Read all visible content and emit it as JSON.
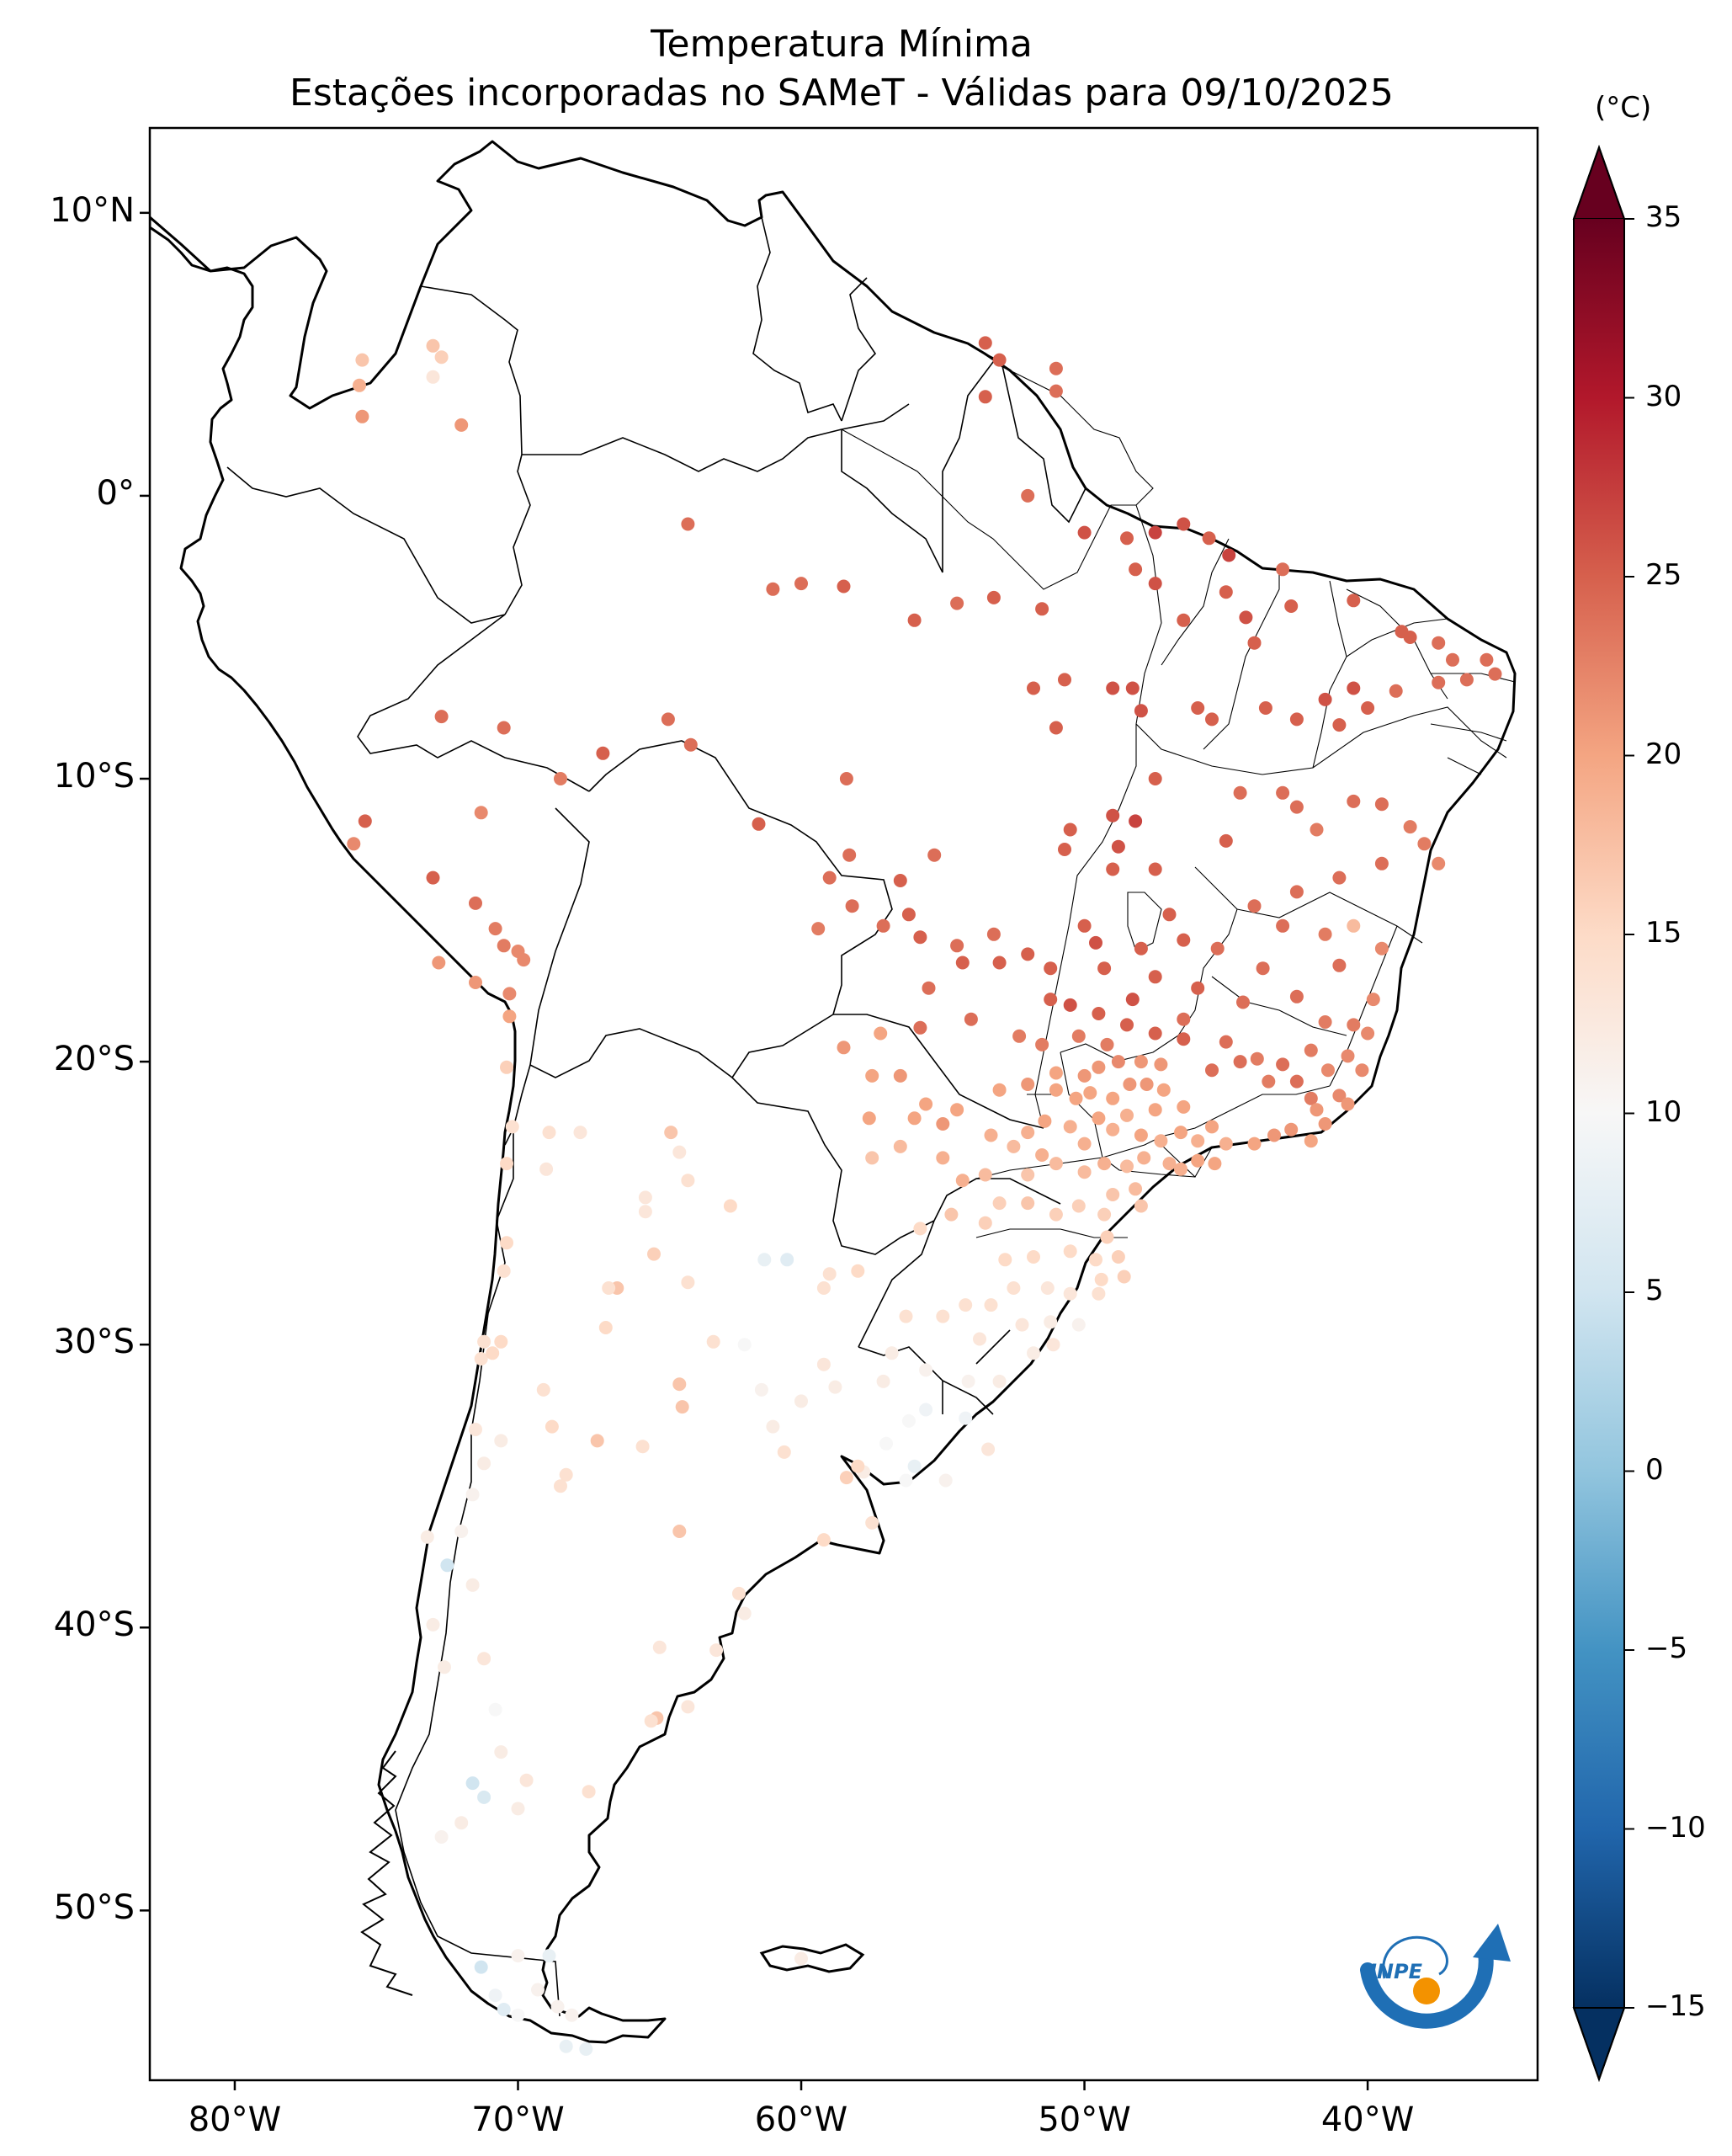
{
  "title": {
    "line1": "Temperatura Mínima",
    "line2": "Estações incorporadas no SAMeT - Válidas para 09/10/2025"
  },
  "map": {
    "region": "South America",
    "lon_range": [
      -83,
      -34
    ],
    "lat_range": [
      -56,
      13
    ],
    "lat_ticks": [
      {
        "lat": 10,
        "label": "10°N"
      },
      {
        "lat": 0,
        "label": "0°"
      },
      {
        "lat": -10,
        "label": "10°S"
      },
      {
        "lat": -20,
        "label": "20°S"
      },
      {
        "lat": -30,
        "label": "30°S"
      },
      {
        "lat": -40,
        "label": "40°S"
      },
      {
        "lat": -50,
        "label": "50°S"
      }
    ],
    "lon_ticks": [
      {
        "lon": -80,
        "label": "80°W"
      },
      {
        "lon": -70,
        "label": "70°W"
      },
      {
        "lon": -60,
        "label": "60°W"
      },
      {
        "lon": -50,
        "label": "50°W"
      },
      {
        "lon": -40,
        "label": "40°W"
      }
    ],
    "colors": {
      "coast": "#000000",
      "borders": "#000000",
      "ocean": "#ffffff",
      "land": "#ffffff"
    }
  },
  "colorbar": {
    "unit": "(°C)",
    "min": -15,
    "max": 35,
    "extend": "both",
    "ticks": [
      {
        "value": 35,
        "label": "35"
      },
      {
        "value": 30,
        "label": "30"
      },
      {
        "value": 25,
        "label": "25"
      },
      {
        "value": 20,
        "label": "20"
      },
      {
        "value": 15,
        "label": "15"
      },
      {
        "value": 10,
        "label": "10"
      },
      {
        "value": 5,
        "label": "5"
      },
      {
        "value": 0,
        "label": "0"
      },
      {
        "value": -5,
        "label": "−5"
      },
      {
        "value": -10,
        "label": "−10"
      },
      {
        "value": -15,
        "label": "−15"
      }
    ],
    "colormap": "RdBu_r",
    "stops": [
      "#053061",
      "#2166ac",
      "#4393c3",
      "#92c5de",
      "#d1e5f0",
      "#f7f7f7",
      "#fddbc7",
      "#f4a582",
      "#d6604d",
      "#b2182b",
      "#67001f"
    ]
  },
  "logo": {
    "name": "INPE logo",
    "text": "INPE"
  },
  "stations": [
    [
      -75.5,
      4.8,
      17
    ],
    [
      -75.6,
      3.9,
      19
    ],
    [
      -75.5,
      2.8,
      21
    ],
    [
      -73.0,
      5.3,
      17
    ],
    [
      -72.7,
      4.9,
      16
    ],
    [
      -73.0,
      4.2,
      13
    ],
    [
      -72.0,
      2.5,
      21
    ],
    [
      -64.0,
      -1.0,
      24
    ],
    [
      -61.0,
      -3.3,
      24
    ],
    [
      -60.0,
      -3.1,
      24
    ],
    [
      -58.5,
      -3.2,
      25
    ],
    [
      -56.0,
      -4.4,
      25
    ],
    [
      -54.5,
      -3.8,
      24
    ],
    [
      -53.2,
      -3.6,
      25
    ],
    [
      -51.5,
      -4.0,
      25
    ],
    [
      -53.5,
      5.4,
      25
    ],
    [
      -53.0,
      4.8,
      25
    ],
    [
      -53.5,
      3.5,
      25
    ],
    [
      -51.0,
      4.5,
      24
    ],
    [
      -51.0,
      3.7,
      24
    ],
    [
      -52.0,
      0.0,
      24
    ],
    [
      -50.0,
      -1.3,
      26
    ],
    [
      -47.5,
      -1.3,
      27
    ],
    [
      -48.5,
      -1.5,
      25
    ],
    [
      -46.5,
      -1.0,
      26
    ],
    [
      -45.6,
      -1.5,
      25
    ],
    [
      -44.9,
      -2.1,
      27
    ],
    [
      -43.0,
      -2.6,
      24
    ],
    [
      -48.2,
      -2.6,
      25
    ],
    [
      -47.5,
      -3.1,
      26
    ],
    [
      -45.0,
      -3.4,
      25
    ],
    [
      -44.3,
      -4.3,
      26
    ],
    [
      -46.5,
      -4.4,
      25
    ],
    [
      -44.0,
      -5.2,
      25
    ],
    [
      -42.7,
      -3.9,
      25
    ],
    [
      -40.5,
      -3.7,
      25
    ],
    [
      -38.8,
      -4.8,
      25
    ],
    [
      -38.5,
      -5.0,
      25
    ],
    [
      -37.5,
      -5.2,
      24
    ],
    [
      -37.0,
      -5.8,
      24
    ],
    [
      -35.8,
      -5.8,
      24
    ],
    [
      -35.5,
      -6.3,
      24
    ],
    [
      -36.5,
      -6.5,
      24
    ],
    [
      -37.5,
      -6.6,
      24
    ],
    [
      -39.0,
      -6.9,
      24
    ],
    [
      -40.5,
      -6.8,
      26
    ],
    [
      -41.5,
      -7.2,
      26
    ],
    [
      -40.0,
      -7.5,
      25
    ],
    [
      -41.0,
      -8.1,
      25
    ],
    [
      -42.5,
      -7.9,
      25
    ],
    [
      -43.6,
      -7.5,
      25
    ],
    [
      -45.5,
      -7.9,
      25
    ],
    [
      -46.0,
      -7.5,
      25
    ],
    [
      -48.3,
      -6.8,
      26
    ],
    [
      -48.0,
      -7.6,
      26
    ],
    [
      -49.0,
      -6.8,
      26
    ],
    [
      -50.7,
      -6.5,
      25
    ],
    [
      -51.8,
      -6.8,
      25
    ],
    [
      -51.0,
      -8.2,
      25
    ],
    [
      -47.5,
      -10.0,
      25
    ],
    [
      -49.0,
      -11.3,
      26
    ],
    [
      -50.5,
      -11.8,
      25
    ],
    [
      -48.2,
      -11.5,
      27
    ],
    [
      -50.7,
      -12.5,
      25
    ],
    [
      -49.0,
      -13.2,
      25
    ],
    [
      -48.8,
      -12.4,
      26
    ],
    [
      -47.5,
      -13.2,
      25
    ],
    [
      -45.0,
      -12.2,
      25
    ],
    [
      -43.0,
      -10.5,
      24
    ],
    [
      -44.5,
      -10.5,
      24
    ],
    [
      -42.5,
      -11.0,
      24
    ],
    [
      -41.8,
      -11.8,
      23
    ],
    [
      -40.5,
      -10.8,
      24
    ],
    [
      -39.5,
      -10.9,
      24
    ],
    [
      -38.5,
      -11.7,
      23
    ],
    [
      -38.0,
      -12.3,
      23
    ],
    [
      -37.5,
      -13.0,
      22
    ],
    [
      -39.5,
      -13.0,
      24
    ],
    [
      -41.0,
      -13.5,
      24
    ],
    [
      -42.5,
      -14.0,
      24
    ],
    [
      -44.0,
      -14.5,
      24
    ],
    [
      -43.0,
      -15.2,
      24
    ],
    [
      -41.5,
      -15.5,
      23
    ],
    [
      -40.5,
      -15.2,
      18
    ],
    [
      -39.5,
      -16.0,
      22
    ],
    [
      -41.0,
      -16.6,
      24
    ],
    [
      -39.8,
      -17.8,
      22
    ],
    [
      -40.5,
      -18.7,
      23
    ],
    [
      -41.5,
      -18.6,
      23
    ],
    [
      -42.5,
      -17.7,
      24
    ],
    [
      -43.7,
      -16.7,
      24
    ],
    [
      -44.4,
      -17.9,
      24
    ],
    [
      -45.3,
      -16.0,
      24
    ],
    [
      -46.0,
      -17.4,
      25
    ],
    [
      -46.5,
      -18.5,
      24
    ],
    [
      -45.0,
      -19.3,
      24
    ],
    [
      -43.9,
      -19.9,
      23
    ],
    [
      -43.0,
      -20.1,
      24
    ],
    [
      -42.0,
      -19.6,
      23
    ],
    [
      -41.4,
      -20.3,
      22
    ],
    [
      -40.2,
      -20.3,
      22
    ],
    [
      -40.7,
      -19.8,
      22
    ],
    [
      -40.0,
      -19.0,
      22
    ],
    [
      -41.0,
      -21.2,
      22
    ],
    [
      -42.0,
      -21.3,
      23
    ],
    [
      -42.5,
      -20.7,
      24
    ],
    [
      -43.5,
      -20.7,
      23
    ],
    [
      -44.5,
      -20.0,
      24
    ],
    [
      -45.5,
      -20.3,
      24
    ],
    [
      -46.5,
      -19.2,
      25
    ],
    [
      -47.5,
      -19.0,
      25
    ],
    [
      -48.5,
      -18.7,
      25
    ],
    [
      -49.5,
      -18.3,
      25
    ],
    [
      -50.5,
      -18.0,
      26
    ],
    [
      -51.2,
      -17.8,
      25
    ],
    [
      -51.2,
      -16.7,
      25
    ],
    [
      -52.0,
      -16.2,
      25
    ],
    [
      -49.3,
      -16.7,
      25
    ],
    [
      -48.0,
      -16.0,
      25
    ],
    [
      -47.5,
      -17.0,
      25
    ],
    [
      -48.3,
      -17.8,
      26
    ],
    [
      -50.0,
      -15.2,
      25
    ],
    [
      -49.6,
      -15.8,
      26
    ],
    [
      -47.0,
      -14.8,
      25
    ],
    [
      -46.5,
      -15.7,
      25
    ],
    [
      -53.2,
      -15.5,
      24
    ],
    [
      -54.5,
      -15.9,
      24
    ],
    [
      -55.8,
      -15.6,
      25
    ],
    [
      -56.2,
      -14.8,
      25
    ],
    [
      -57.1,
      -15.2,
      24
    ],
    [
      -58.2,
      -14.5,
      24
    ],
    [
      -59.4,
      -15.3,
      23
    ],
    [
      -56.5,
      -13.6,
      25
    ],
    [
      -55.3,
      -12.7,
      24
    ],
    [
      -58.3,
      -12.7,
      24
    ],
    [
      -59.0,
      -13.5,
      24
    ],
    [
      -58.4,
      -10.0,
      24
    ],
    [
      -61.5,
      -11.6,
      25
    ],
    [
      -63.9,
      -8.8,
      24
    ],
    [
      -64.7,
      -7.9,
      24
    ],
    [
      -67.0,
      -9.1,
      25
    ],
    [
      -68.5,
      -10.0,
      23
    ],
    [
      -70.5,
      -8.2,
      24
    ],
    [
      -72.7,
      -7.8,
      24
    ],
    [
      -71.3,
      -11.2,
      22
    ],
    [
      -75.4,
      -11.5,
      25
    ],
    [
      -75.8,
      -12.3,
      22
    ],
    [
      -73.0,
      -13.5,
      25
    ],
    [
      -71.5,
      -14.4,
      24
    ],
    [
      -70.8,
      -15.3,
      23
    ],
    [
      -70.5,
      -15.9,
      23
    ],
    [
      -70.0,
      -16.1,
      22
    ],
    [
      -69.8,
      -16.4,
      22
    ],
    [
      -72.8,
      -16.5,
      21
    ],
    [
      -71.5,
      -17.2,
      21
    ],
    [
      -70.3,
      -17.6,
      22
    ],
    [
      -70.3,
      -18.4,
      20
    ],
    [
      -53.0,
      -16.5,
      25
    ],
    [
      -54.3,
      -16.5,
      25
    ],
    [
      -55.5,
      -17.4,
      24
    ],
    [
      -54.0,
      -18.5,
      24
    ],
    [
      -55.8,
      -18.8,
      24
    ],
    [
      -57.2,
      -19.0,
      20
    ],
    [
      -58.5,
      -19.5,
      21
    ],
    [
      -57.5,
      -20.5,
      20
    ],
    [
      -56.5,
      -20.5,
      21
    ],
    [
      -55.6,
      -21.5,
      20
    ],
    [
      -56.0,
      -22.0,
      20
    ],
    [
      -57.6,
      -22.0,
      20
    ],
    [
      -55.0,
      -22.2,
      21
    ],
    [
      -54.5,
      -21.7,
      20
    ],
    [
      -53.0,
      -21.0,
      20
    ],
    [
      -52.0,
      -20.8,
      21
    ],
    [
      -51.0,
      -20.4,
      20
    ],
    [
      -50.0,
      -20.5,
      21
    ],
    [
      -49.5,
      -20.2,
      21
    ],
    [
      -48.8,
      -20.0,
      22
    ],
    [
      -48.0,
      -20.0,
      21
    ],
    [
      -47.3,
      -20.1,
      21
    ],
    [
      -51.5,
      -19.4,
      23
    ],
    [
      -50.2,
      -19.1,
      23
    ],
    [
      -49.2,
      -19.4,
      23
    ],
    [
      -52.3,
      -19.1,
      23
    ],
    [
      -51.0,
      -21.0,
      20
    ],
    [
      -50.3,
      -21.3,
      20
    ],
    [
      -49.8,
      -21.1,
      20
    ],
    [
      -49.0,
      -21.3,
      20
    ],
    [
      -48.4,
      -20.8,
      21
    ],
    [
      -47.8,
      -20.8,
      21
    ],
    [
      -47.2,
      -21.0,
      20
    ],
    [
      -46.5,
      -21.6,
      20
    ],
    [
      -47.5,
      -21.7,
      20
    ],
    [
      -48.5,
      -21.9,
      19
    ],
    [
      -49.5,
      -22.0,
      20
    ],
    [
      -50.5,
      -22.3,
      19
    ],
    [
      -51.4,
      -22.1,
      20
    ],
    [
      -52.0,
      -22.5,
      19
    ],
    [
      -53.3,
      -22.6,
      19
    ],
    [
      -52.5,
      -23.0,
      18
    ],
    [
      -51.5,
      -23.3,
      19
    ],
    [
      -50.0,
      -22.9,
      19
    ],
    [
      -49.0,
      -22.4,
      19
    ],
    [
      -48.0,
      -22.6,
      20
    ],
    [
      -47.3,
      -22.8,
      19
    ],
    [
      -46.6,
      -22.5,
      20
    ],
    [
      -46.0,
      -22.8,
      19
    ],
    [
      -45.5,
      -22.3,
      20
    ],
    [
      -45.0,
      -22.9,
      19
    ],
    [
      -44.0,
      -22.9,
      20
    ],
    [
      -43.3,
      -22.6,
      21
    ],
    [
      -42.7,
      -22.4,
      21
    ],
    [
      -42.0,
      -22.8,
      20
    ],
    [
      -41.5,
      -22.2,
      21
    ],
    [
      -41.8,
      -21.7,
      21
    ],
    [
      -40.7,
      -21.5,
      21
    ],
    [
      -47.0,
      -23.6,
      19
    ],
    [
      -46.6,
      -23.8,
      19
    ],
    [
      -46.0,
      -23.5,
      20
    ],
    [
      -45.4,
      -23.6,
      20
    ],
    [
      -47.9,
      -23.4,
      19
    ],
    [
      -48.5,
      -23.7,
      18
    ],
    [
      -49.3,
      -23.6,
      19
    ],
    [
      -50.0,
      -23.9,
      18
    ],
    [
      -51.0,
      -23.6,
      18
    ],
    [
      -52.0,
      -24.0,
      17
    ],
    [
      -53.5,
      -24.0,
      18
    ],
    [
      -54.3,
      -24.2,
      19
    ],
    [
      -55.0,
      -23.4,
      19
    ],
    [
      -56.5,
      -23.0,
      18
    ],
    [
      -57.5,
      -23.4,
      17
    ],
    [
      -48.2,
      -24.5,
      18
    ],
    [
      -49.0,
      -24.7,
      17
    ],
    [
      -48.0,
      -25.1,
      17
    ],
    [
      -49.3,
      -25.4,
      16
    ],
    [
      -50.2,
      -25.1,
      16
    ],
    [
      -51.0,
      -25.4,
      16
    ],
    [
      -52.0,
      -25.0,
      17
    ],
    [
      -53.0,
      -25.0,
      16
    ],
    [
      -53.5,
      -25.7,
      16
    ],
    [
      -54.7,
      -25.4,
      17
    ],
    [
      -55.8,
      -25.9,
      15
    ],
    [
      -49.2,
      -26.2,
      16
    ],
    [
      -48.8,
      -26.9,
      16
    ],
    [
      -49.6,
      -27.0,
      15
    ],
    [
      -50.5,
      -26.7,
      15
    ],
    [
      -51.8,
      -26.9,
      15
    ],
    [
      -52.8,
      -27.0,
      15
    ],
    [
      -49.4,
      -27.7,
      15
    ],
    [
      -48.6,
      -27.6,
      16
    ],
    [
      -49.5,
      -28.2,
      14
    ],
    [
      -50.5,
      -28.2,
      13
    ],
    [
      -51.3,
      -28.0,
      13
    ],
    [
      -52.5,
      -28.0,
      14
    ],
    [
      -53.3,
      -28.6,
      14
    ],
    [
      -54.2,
      -28.6,
      14
    ],
    [
      -55.0,
      -29.0,
      14
    ],
    [
      -56.3,
      -29.0,
      14
    ],
    [
      -53.7,
      -29.8,
      13
    ],
    [
      -52.2,
      -29.3,
      13
    ],
    [
      -51.2,
      -29.2,
      12
    ],
    [
      -50.2,
      -29.3,
      11
    ],
    [
      -51.1,
      -30.0,
      13
    ],
    [
      -51.8,
      -30.3,
      12
    ],
    [
      -53.0,
      -31.3,
      12
    ],
    [
      -54.1,
      -31.3,
      11
    ],
    [
      -55.6,
      -30.9,
      11
    ],
    [
      -56.8,
      -30.3,
      12
    ],
    [
      -57.1,
      -31.3,
      12
    ],
    [
      -55.6,
      -32.3,
      9
    ],
    [
      -54.2,
      -32.6,
      9
    ],
    [
      -53.4,
      -33.7,
      13
    ],
    [
      -56.2,
      -32.7,
      10
    ],
    [
      -57.0,
      -33.5,
      10
    ],
    [
      -56.0,
      -34.3,
      8
    ],
    [
      -54.9,
      -34.8,
      11
    ],
    [
      -57.8,
      -34.5,
      12
    ],
    [
      -56.3,
      -34.8,
      10
    ],
    [
      -59.0,
      -27.5,
      14
    ],
    [
      -58.0,
      -27.4,
      15
    ],
    [
      -59.2,
      -28.0,
      14
    ],
    [
      -60.5,
      -27.0,
      7
    ],
    [
      -61.3,
      -27.0,
      8
    ],
    [
      -62.5,
      -25.1,
      15
    ],
    [
      -64.0,
      -24.2,
      14
    ],
    [
      -65.5,
      -24.8,
      13
    ],
    [
      -64.6,
      -22.5,
      17
    ],
    [
      -67.8,
      -22.5,
      13
    ],
    [
      -65.5,
      -25.3,
      13
    ],
    [
      -64.3,
      -23.2,
      13
    ],
    [
      -65.2,
      -26.8,
      16
    ],
    [
      -66.5,
      -28.0,
      17
    ],
    [
      -66.9,
      -29.4,
      15
    ],
    [
      -64.0,
      -27.8,
      14
    ],
    [
      -64.3,
      -31.4,
      17
    ],
    [
      -64.2,
      -32.2,
      17
    ],
    [
      -63.1,
      -29.9,
      14
    ],
    [
      -62.0,
      -30.0,
      10
    ],
    [
      -61.4,
      -31.6,
      11
    ],
    [
      -61.0,
      -32.9,
      12
    ],
    [
      -60.0,
      -32.0,
      12
    ],
    [
      -59.2,
      -30.7,
      13
    ],
    [
      -58.8,
      -31.5,
      12
    ],
    [
      -60.6,
      -33.8,
      14
    ],
    [
      -58.4,
      -34.7,
      16
    ],
    [
      -58.0,
      -34.3,
      15
    ],
    [
      -57.5,
      -36.3,
      14
    ],
    [
      -59.2,
      -36.9,
      15
    ],
    [
      -62.2,
      -38.8,
      14
    ],
    [
      -62.0,
      -39.5,
      12
    ],
    [
      -63.0,
      -40.8,
      13
    ],
    [
      -65.0,
      -40.7,
      13
    ],
    [
      -64.3,
      -36.6,
      17
    ],
    [
      -65.6,
      -33.6,
      14
    ],
    [
      -68.8,
      -32.9,
      15
    ],
    [
      -68.3,
      -34.6,
      14
    ],
    [
      -69.1,
      -31.6,
      14
    ],
    [
      -67.2,
      -33.4,
      17
    ],
    [
      -68.5,
      -35.0,
      14
    ],
    [
      -70.6,
      -29.9,
      15
    ],
    [
      -71.2,
      -29.9,
      14
    ],
    [
      -71.3,
      -30.5,
      14
    ],
    [
      -71.5,
      -33.0,
      13
    ],
    [
      -70.6,
      -33.4,
      12
    ],
    [
      -71.2,
      -34.2,
      12
    ],
    [
      -71.6,
      -35.3,
      11
    ],
    [
      -72.0,
      -36.6,
      11
    ],
    [
      -72.5,
      -37.8,
      5
    ],
    [
      -71.6,
      -38.5,
      12
    ],
    [
      -73.0,
      -39.9,
      12
    ],
    [
      -72.6,
      -41.4,
      12
    ],
    [
      -71.2,
      -41.1,
      13
    ],
    [
      -70.8,
      -42.9,
      10
    ],
    [
      -70.6,
      -44.4,
      12
    ],
    [
      -71.6,
      -45.5,
      5
    ],
    [
      -71.2,
      -46.0,
      6
    ],
    [
      -72.0,
      -46.9,
      12
    ],
    [
      -72.7,
      -47.4,
      11
    ],
    [
      -70.0,
      -46.4,
      12
    ],
    [
      -67.5,
      -45.8,
      14
    ],
    [
      -69.7,
      -45.4,
      13
    ],
    [
      -65.1,
      -43.2,
      17
    ],
    [
      -64.0,
      -42.8,
      13
    ],
    [
      -65.3,
      -43.3,
      14
    ],
    [
      -71.3,
      -52.0,
      5
    ],
    [
      -70.0,
      -51.6,
      11
    ],
    [
      -68.9,
      -51.6,
      8
    ],
    [
      -70.8,
      -53.0,
      9
    ],
    [
      -69.3,
      -52.8,
      11
    ],
    [
      -70.5,
      -53.5,
      7
    ],
    [
      -68.3,
      -54.8,
      8
    ],
    [
      -67.6,
      -54.9,
      8
    ],
    [
      -68.6,
      -53.4,
      11
    ],
    [
      -70.0,
      -53.7,
      10
    ],
    [
      -68.1,
      -53.7,
      11
    ],
    [
      -60.0,
      -51.7,
      12
    ],
    [
      -73.2,
      -36.8,
      12
    ],
    [
      -70.9,
      -30.3,
      15
    ],
    [
      -70.5,
      -27.4,
      14
    ],
    [
      -70.4,
      -26.4,
      15
    ],
    [
      -70.4,
      -23.6,
      15
    ],
    [
      -70.2,
      -22.3,
      14
    ],
    [
      -68.9,
      -22.5,
      14
    ],
    [
      -69.0,
      -23.8,
      13
    ],
    [
      -70.4,
      -20.2,
      16
    ],
    [
      -66.8,
      -28.0,
      14
    ]
  ]
}
